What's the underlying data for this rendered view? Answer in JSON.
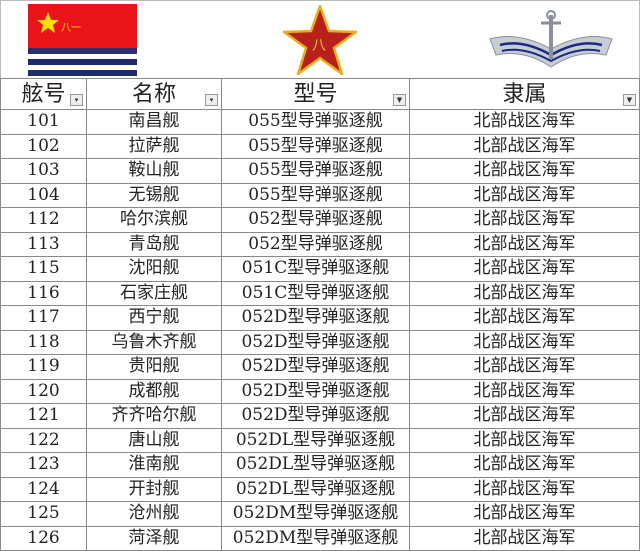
{
  "banner": {
    "flag_text": "八一",
    "icons": [
      "navy-flag",
      "pla-star-emblem",
      "navy-anchor-emblem"
    ]
  },
  "header": {
    "columns": [
      {
        "label": "舷号",
        "filter": "dropdown"
      },
      {
        "label": "名称",
        "filter": "dropdown"
      },
      {
        "label": "型号",
        "filter": "filtered"
      },
      {
        "label": "隶属",
        "filter": "filtered"
      }
    ]
  },
  "rows": [
    [
      "101",
      "南昌舰",
      "055型导弹驱逐舰",
      "北部战区海军"
    ],
    [
      "102",
      "拉萨舰",
      "055型导弹驱逐舰",
      "北部战区海军"
    ],
    [
      "103",
      "鞍山舰",
      "055型导弹驱逐舰",
      "北部战区海军"
    ],
    [
      "104",
      "无锡舰",
      "055型导弹驱逐舰",
      "北部战区海军"
    ],
    [
      "112",
      "哈尔滨舰",
      "052型导弹驱逐舰",
      "北部战区海军"
    ],
    [
      "113",
      "青岛舰",
      "052型导弹驱逐舰",
      "北部战区海军"
    ],
    [
      "115",
      "沈阳舰",
      "051C型导弹驱逐舰",
      "北部战区海军"
    ],
    [
      "116",
      "石家庄舰",
      "051C型导弹驱逐舰",
      "北部战区海军"
    ],
    [
      "117",
      "西宁舰",
      "052D型导弹驱逐舰",
      "北部战区海军"
    ],
    [
      "118",
      "乌鲁木齐舰",
      "052D型导弹驱逐舰",
      "北部战区海军"
    ],
    [
      "119",
      "贵阳舰",
      "052D型导弹驱逐舰",
      "北部战区海军"
    ],
    [
      "120",
      "成都舰",
      "052D型导弹驱逐舰",
      "北部战区海军"
    ],
    [
      "121",
      "齐齐哈尔舰",
      "052D型导弹驱逐舰",
      "北部战区海军"
    ],
    [
      "122",
      "唐山舰",
      "052DL型导弹驱逐舰",
      "北部战区海军"
    ],
    [
      "123",
      "淮南舰",
      "052DL型导弹驱逐舰",
      "北部战区海军"
    ],
    [
      "124",
      "开封舰",
      "052DL型导弹驱逐舰",
      "北部战区海军"
    ],
    [
      "125",
      "沧州舰",
      "052DM型导弹驱逐舰",
      "北部战区海军"
    ],
    [
      "126",
      "菏泽舰",
      "052DM型导弹驱逐舰",
      "北部战区海军"
    ]
  ]
}
